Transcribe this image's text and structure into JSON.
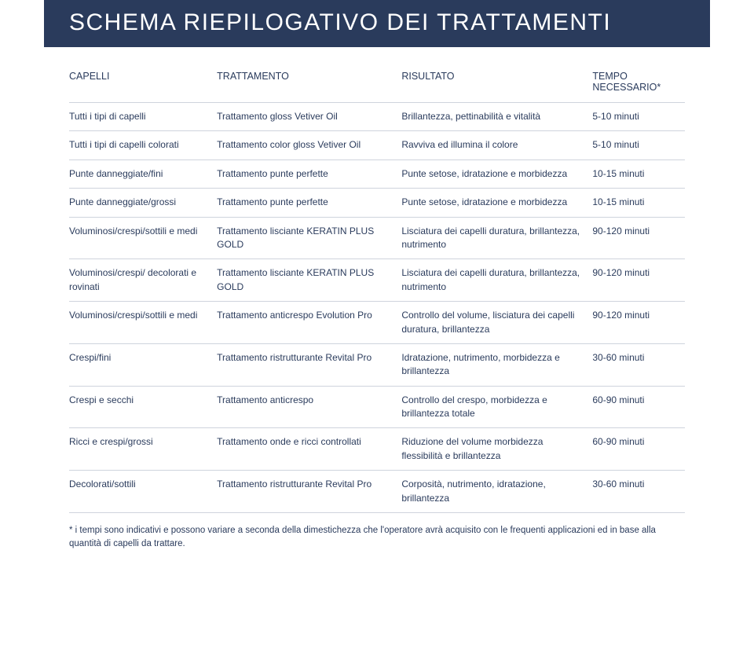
{
  "title": "SCHEMA RIEPILOGATIVO DEI TRATTAMENTI",
  "colors": {
    "header_bg": "#2a3b5c",
    "header_text": "#ffffff",
    "body_text": "#2a3b5c",
    "divider": "#cfd4dd",
    "page_bg": "#ffffff"
  },
  "typography": {
    "title_fontsize": 30,
    "title_weight": 200,
    "th_fontsize": 12.5,
    "td_fontsize": 12,
    "footnote_fontsize": 11.5
  },
  "table": {
    "columns": [
      {
        "label": "CAPELLI",
        "width_pct": 24
      },
      {
        "label": "TRATTAMENTO",
        "width_pct": 30
      },
      {
        "label": "RISULTATO",
        "width_pct": 31
      },
      {
        "label": "TEMPO NECESSARIO*",
        "width_pct": 15
      }
    ],
    "rows": [
      {
        "capelli": "Tutti i tipi di capelli",
        "trattamento": "Trattamento gloss Vetiver Oil",
        "risultato": "Brillantezza, pettinabilità e vitalità",
        "tempo": "5-10 minuti"
      },
      {
        "capelli": "Tutti i tipi di capelli colorati",
        "trattamento": "Trattamento color gloss Vetiver Oil",
        "risultato": "Ravviva ed illumina il colore",
        "tempo": "5-10 minuti"
      },
      {
        "capelli": "Punte danneggiate/fini",
        "trattamento": "Trattamento punte perfette",
        "risultato": "Punte setose, idratazione e morbidezza",
        "tempo": "10-15 minuti"
      },
      {
        "capelli": "Punte danneggiate/grossi",
        "trattamento": "Trattamento punte perfette",
        "risultato": "Punte setose, idratazione e morbidezza",
        "tempo": "10-15 minuti"
      },
      {
        "capelli": "Voluminosi/crespi/sottili e medi",
        "trattamento": "Trattamento lisciante KERATIN PLUS GOLD",
        "risultato": "Lisciatura dei capelli duratura, brillantezza, nutrimento",
        "tempo": "90-120 minuti"
      },
      {
        "capelli": "Voluminosi/crespi/ decolorati e rovinati",
        "trattamento": "Trattamento lisciante KERATIN PLUS GOLD",
        "risultato": "Lisciatura dei capelli duratura, brillantezza, nutrimento",
        "tempo": "90-120 minuti"
      },
      {
        "capelli": "Voluminosi/crespi/sottili e medi",
        "trattamento": "Trattamento anticrespo Evolution Pro",
        "risultato": "Controllo del volume, lisciatura dei capelli duratura, brillantezza",
        "tempo": "90-120 minuti"
      },
      {
        "capelli": "Crespi/fini",
        "trattamento": "Trattamento ristrutturante Revital Pro",
        "risultato": "Idratazione, nutrimento, morbidezza e brillantezza",
        "tempo": "30-60 minuti"
      },
      {
        "capelli": "Crespi e secchi",
        "trattamento": "Trattamento anticrespo",
        "risultato": "Controllo del crespo, morbidezza e brillantezza totale",
        "tempo": "60-90 minuti"
      },
      {
        "capelli": "Ricci e crespi/grossi",
        "trattamento": "Trattamento onde e ricci controllati",
        "risultato": "Riduzione del volume morbidezza flessibilità e brillantezza",
        "tempo": "60-90 minuti"
      },
      {
        "capelli": "Decolorati/sottili",
        "trattamento": "Trattamento ristrutturante Revital Pro",
        "risultato": "Corposità, nutrimento, idratazione, brillantezza",
        "tempo": "30-60 minuti"
      }
    ]
  },
  "footnote": "* i tempi sono indicativi e possono variare a seconda della dimestichezza che l'operatore avrà acquisito con le frequenti applicazioni ed in base alla quantità di capelli da trattare."
}
